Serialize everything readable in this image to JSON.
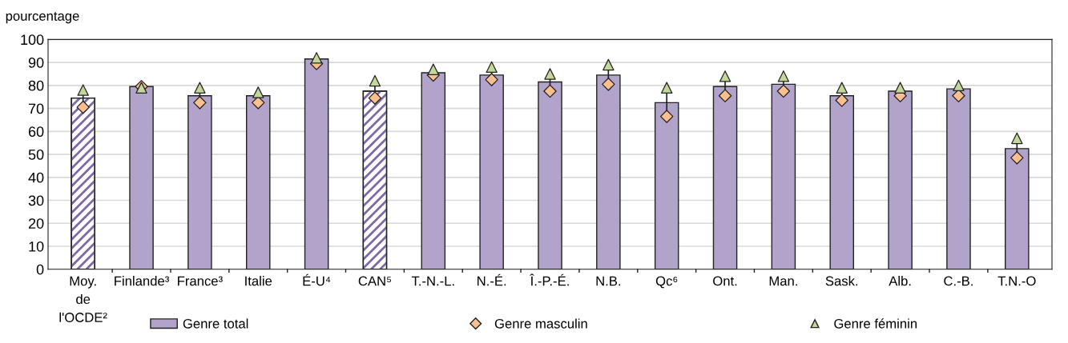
{
  "chart_data": {
    "type": "bar",
    "ylabel": "pourcentage",
    "categories": [
      "Moy.\nde\nl'OCDE²",
      "Finlande³",
      "France³",
      "Italie",
      "É-U⁴",
      "CAN⁵",
      "T.-N.-L.",
      "N.-É.",
      "Î.-P.-É.",
      "N.B.",
      "Qc⁶",
      "Ont.",
      "Man.",
      "Sask.",
      "Alb.",
      "C.-B.",
      "T.N.-O"
    ],
    "series": [
      {
        "name": "Genre total",
        "type": "bar",
        "color": "#b1a3c9",
        "colors": [
          "#ffffff",
          "#b1a3c9",
          "#b1a3c9",
          "#b1a3c9",
          "#b1a3c9",
          "#ffffff",
          "#b1a3c9",
          "#b1a3c9",
          "#b1a3c9",
          "#b1a3c9",
          "#b1a3c9",
          "#b1a3c9",
          "#b1a3c9",
          "#b1a3c9",
          "#b1a3c9",
          "#b1a3c9",
          "#b1a3c9"
        ],
        "values": [
          74.5,
          79.5,
          75.5,
          75.5,
          91.5,
          77.5,
          85.5,
          84.5,
          81.5,
          84.5,
          72.5,
          79.5,
          80.5,
          75.5,
          77.5,
          78.5,
          52.5
        ]
      },
      {
        "name": "Genre masculin",
        "type": "scatter",
        "marker": "diamond",
        "color": "#fbbf8f",
        "values": [
          70.5,
          79.5,
          72.5,
          72.5,
          89.5,
          74.5,
          84.5,
          82.5,
          77.5,
          80.5,
          66.5,
          75.5,
          77.5,
          73.5,
          75.5,
          75.5,
          48.5
        ]
      },
      {
        "name": "Genre féminin",
        "type": "scatter",
        "marker": "triangle",
        "color": "#c3d69b",
        "values": [
          78,
          79,
          79,
          77,
          92,
          82,
          87,
          88,
          85,
          89,
          79,
          84,
          84,
          79,
          79,
          80,
          57
        ]
      }
    ],
    "ylim": [
      0,
      100
    ],
    "yticks": [
      0,
      10,
      20,
      30,
      40,
      50,
      60,
      70,
      80,
      90,
      100
    ],
    "grid": "y",
    "legend": "bottom"
  }
}
